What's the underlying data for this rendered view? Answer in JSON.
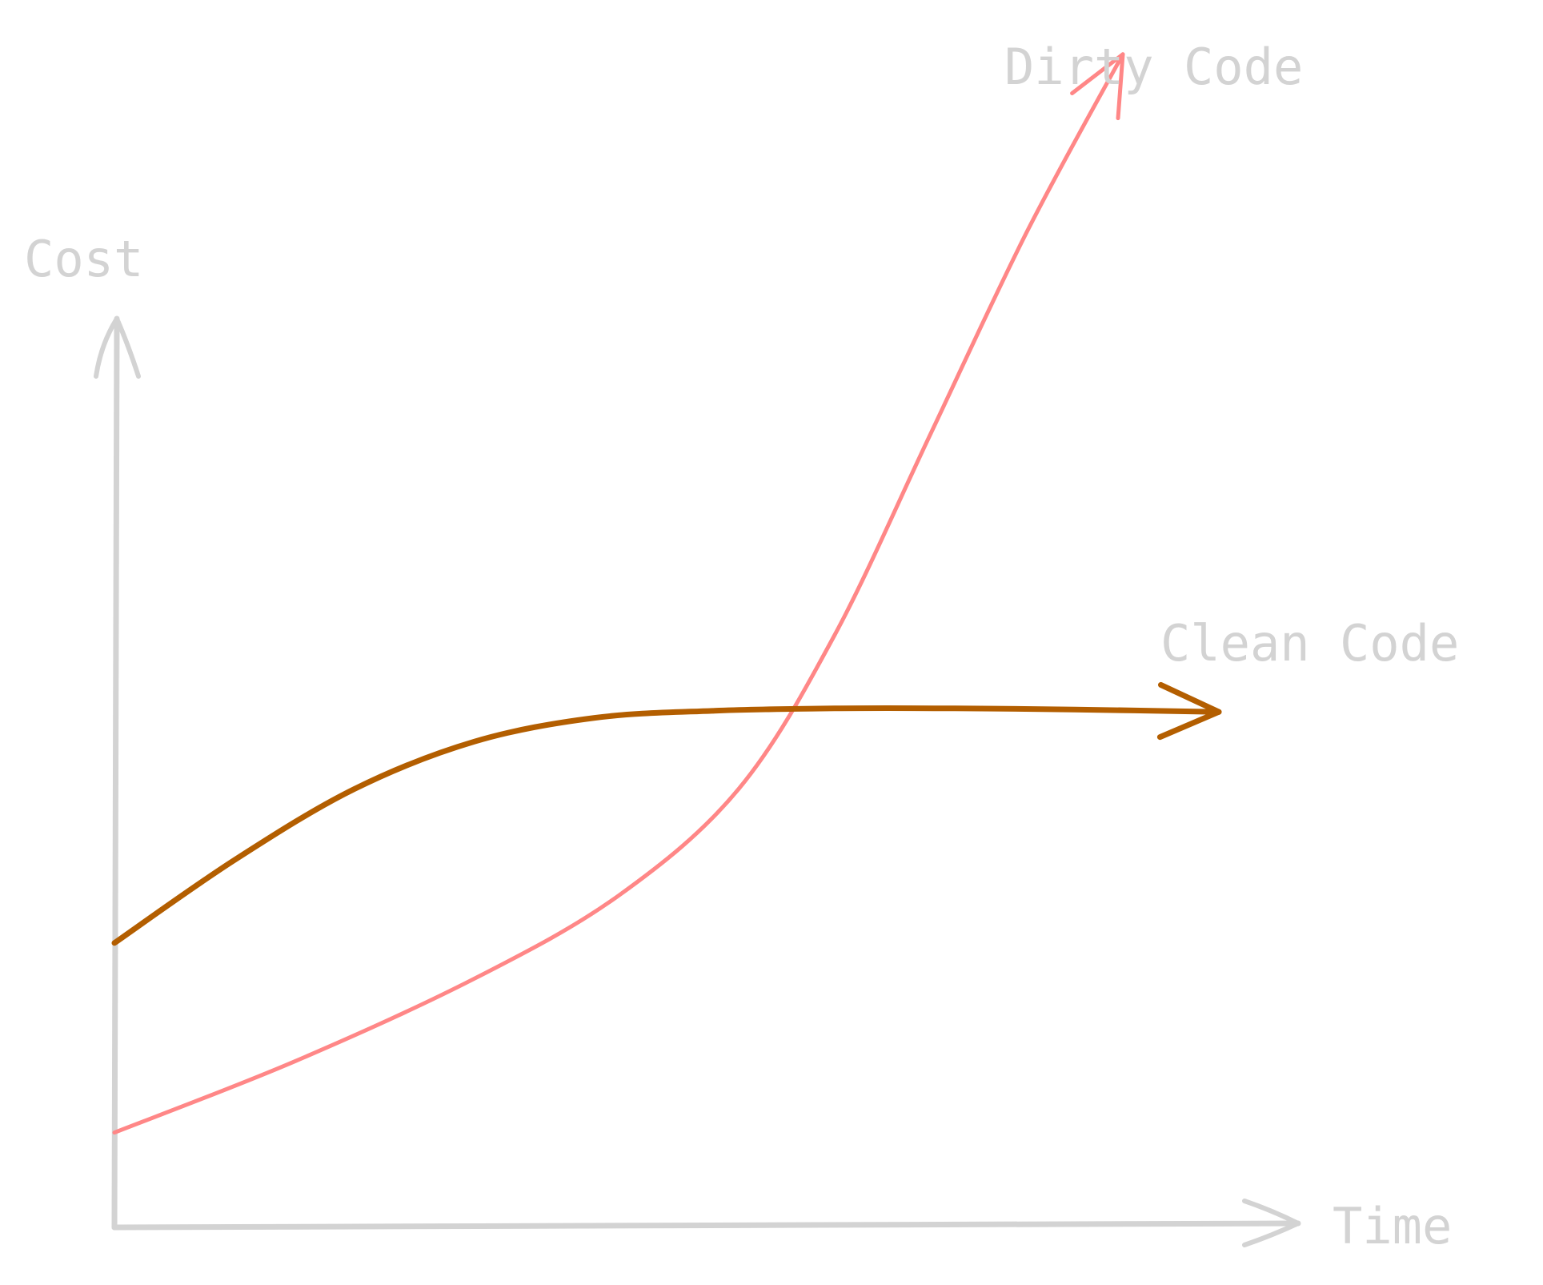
{
  "chart_data": {
    "type": "line",
    "xlabel": "Time",
    "ylabel": "Cost",
    "xlim": [
      0,
      100
    ],
    "ylim": [
      0,
      100
    ],
    "grid": false,
    "series": [
      {
        "name": "Dirty Code",
        "color": "#ff8787",
        "points": [
          [
            0,
            8
          ],
          [
            15,
            14
          ],
          [
            30,
            21
          ],
          [
            42,
            28
          ],
          [
            52,
            37
          ],
          [
            60,
            50
          ],
          [
            68,
            67
          ],
          [
            76,
            84
          ],
          [
            84,
            99
          ]
        ]
      },
      {
        "name": "Clean Code",
        "color": "#b35e00",
        "points": [
          [
            0,
            24
          ],
          [
            10,
            31
          ],
          [
            20,
            37
          ],
          [
            30,
            41
          ],
          [
            40,
            43
          ],
          [
            50,
            43.6
          ],
          [
            60,
            43.8
          ],
          [
            70,
            43.8
          ],
          [
            80,
            43.7
          ],
          [
            92,
            43.5
          ]
        ]
      }
    ]
  }
}
